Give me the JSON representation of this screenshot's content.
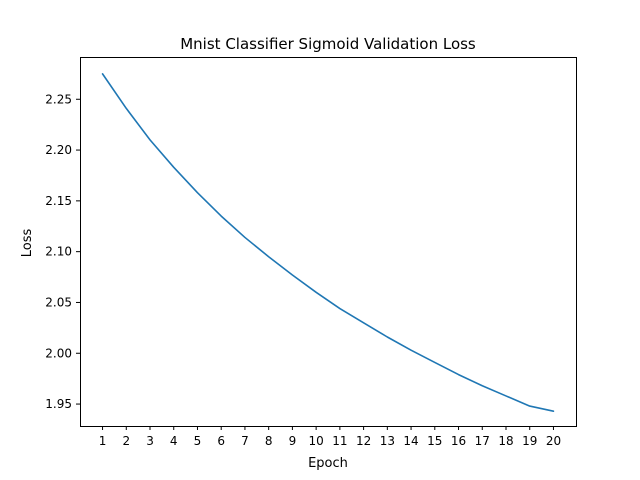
{
  "chart_data": {
    "type": "line",
    "title": "Mnist Classifier Sigmoid Validation Loss",
    "xlabel": "Epoch",
    "ylabel": "Loss",
    "x": [
      1,
      2,
      3,
      4,
      5,
      6,
      7,
      8,
      9,
      10,
      11,
      12,
      13,
      14,
      15,
      16,
      17,
      18,
      19,
      20
    ],
    "series": [
      {
        "color": "#1f77b4",
        "values": [
          2.275,
          2.241,
          2.21,
          2.183,
          2.158,
          2.135,
          2.114,
          2.095,
          2.077,
          2.06,
          2.044,
          2.03,
          2.016,
          2.003,
          1.991,
          1.979,
          1.968,
          1.958,
          1.948,
          1.943
        ]
      }
    ],
    "xticks": [
      "1",
      "2",
      "3",
      "4",
      "5",
      "6",
      "7",
      "8",
      "9",
      "10",
      "11",
      "12",
      "13",
      "14",
      "15",
      "16",
      "17",
      "18",
      "19",
      "20"
    ],
    "yticks": [
      1.95,
      2.0,
      2.05,
      2.1,
      2.15,
      2.2,
      2.25
    ],
    "ytick_labels": [
      "1.95",
      "2.00",
      "2.05",
      "2.10",
      "2.15",
      "2.20",
      "2.25"
    ],
    "xlim": [
      0.05,
      20.95
    ],
    "ylim": [
      1.9284,
      2.2916
    ],
    "grid": false
  }
}
